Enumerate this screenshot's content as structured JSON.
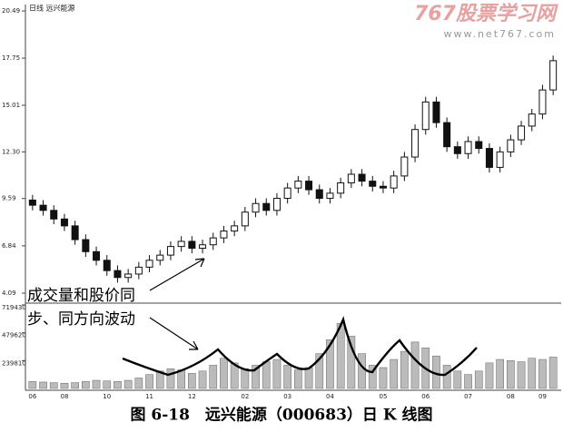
{
  "chart_data": {
    "type": "candlestick",
    "header": "日线 远兴能源",
    "watermark": "767股票学习网",
    "watermark_url": "www.net767.com",
    "annotation": [
      "成交量和股价同",
      "步、同方向波动"
    ],
    "caption": "图 6-18　远兴能源（000683）日 K 线图",
    "categories": [
      "06",
      null,
      null,
      "08",
      null,
      null,
      null,
      "10",
      null,
      null,
      null,
      "11",
      null,
      null,
      null,
      "12",
      null,
      null,
      null,
      null,
      "02",
      null,
      null,
      null,
      "03",
      null,
      null,
      null,
      "04",
      null,
      null,
      null,
      null,
      "05",
      null,
      null,
      null,
      "06",
      null,
      null,
      null,
      "07",
      null,
      null,
      null,
      "08",
      null,
      null,
      "09",
      null
    ],
    "open": [
      9.5,
      9.2,
      8.9,
      8.4,
      8.0,
      7.2,
      6.5,
      6.0,
      5.4,
      5.0,
      5.2,
      5.6,
      6.0,
      6.3,
      6.8,
      7.1,
      6.7,
      6.9,
      7.3,
      7.7,
      8.0,
      8.8,
      9.3,
      8.9,
      9.6,
      10.2,
      10.6,
      10.1,
      9.6,
      9.9,
      10.5,
      11.0,
      10.6,
      10.3,
      10.2,
      10.9,
      12.0,
      13.6,
      15.2,
      14.0,
      12.6,
      12.2,
      12.9,
      12.5,
      11.4,
      12.3,
      13.0,
      13.8,
      14.5,
      15.9
    ],
    "high": [
      9.8,
      9.5,
      9.2,
      8.7,
      8.3,
      7.5,
      6.8,
      6.3,
      5.7,
      5.5,
      5.9,
      6.3,
      6.6,
      7.1,
      7.4,
      7.4,
      7.2,
      7.6,
      8.0,
      8.3,
      9.1,
      9.6,
      9.6,
      9.9,
      10.5,
      10.9,
      10.9,
      10.4,
      10.2,
      10.8,
      11.3,
      11.3,
      10.9,
      10.6,
      11.2,
      12.3,
      13.9,
      15.5,
      15.5,
      14.3,
      12.9,
      13.2,
      13.2,
      12.8,
      12.6,
      13.3,
      14.1,
      14.8,
      16.2,
      17.9
    ],
    "low": [
      8.9,
      8.6,
      8.1,
      7.7,
      6.9,
      6.2,
      5.7,
      5.1,
      4.7,
      4.7,
      4.9,
      5.3,
      5.7,
      6.0,
      6.5,
      6.4,
      6.4,
      6.6,
      7.0,
      7.4,
      7.7,
      8.5,
      8.6,
      8.6,
      9.3,
      9.9,
      9.8,
      9.3,
      9.3,
      9.6,
      10.2,
      10.3,
      10.0,
      9.9,
      9.9,
      10.6,
      11.7,
      13.3,
      13.7,
      12.3,
      11.9,
      11.9,
      12.2,
      11.1,
      11.1,
      12.0,
      12.7,
      13.5,
      14.2,
      15.6
    ],
    "close": [
      9.2,
      8.9,
      8.4,
      8.0,
      7.2,
      6.5,
      6.0,
      5.4,
      5.0,
      5.2,
      5.6,
      6.0,
      6.3,
      6.8,
      7.1,
      6.7,
      6.9,
      7.3,
      7.7,
      8.0,
      8.8,
      9.3,
      8.9,
      9.6,
      10.2,
      10.6,
      10.1,
      9.6,
      9.9,
      10.5,
      11.0,
      10.6,
      10.3,
      10.2,
      10.9,
      12.0,
      13.6,
      15.2,
      14.0,
      12.6,
      12.2,
      12.9,
      12.5,
      11.4,
      12.3,
      13.0,
      13.8,
      14.5,
      15.9,
      17.6
    ],
    "volume": [
      60000,
      55000,
      50000,
      45000,
      50000,
      60000,
      70000,
      65000,
      60000,
      70000,
      90000,
      120000,
      150000,
      170000,
      160000,
      130000,
      150000,
      200000,
      260000,
      220000,
      170000,
      200000,
      230000,
      250000,
      200000,
      160000,
      180000,
      300000,
      420000,
      560000,
      450000,
      300000,
      200000,
      180000,
      250000,
      320000,
      400000,
      350000,
      280000,
      200000,
      150000,
      120000,
      150000,
      220000,
      250000,
      240000,
      230000,
      260000,
      250000,
      270000
    ],
    "ylim": [
      4.09,
      20.6
    ],
    "yticks": [
      4.09,
      6.84,
      9.59,
      {
        "value": 12.3,
        "label": "12.30"
      },
      15.01,
      17.75,
      20.49
    ],
    "vlim": [
      0,
      719430
    ],
    "vticks": [
      239810,
      479620,
      719430
    ],
    "color": "#111111"
  }
}
